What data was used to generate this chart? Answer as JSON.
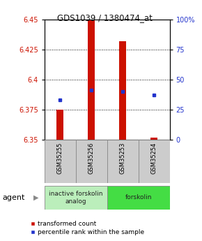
{
  "title": "GDS1039 / 1380474_at",
  "samples": [
    "GSM35255",
    "GSM35256",
    "GSM35253",
    "GSM35254"
  ],
  "bar_bottoms": [
    6.35,
    6.35,
    6.35,
    6.35
  ],
  "bar_tops": [
    6.375,
    6.45,
    6.432,
    6.352
  ],
  "blue_pct": [
    33,
    41,
    40,
    37
  ],
  "ylim": [
    6.35,
    6.45
  ],
  "yticks_left": [
    6.35,
    6.375,
    6.4,
    6.425,
    6.45
  ],
  "yticks_right_vals": [
    0,
    25,
    50,
    75,
    100
  ],
  "yticks_right_labels": [
    "0",
    "25",
    "50",
    "75",
    "100%"
  ],
  "bar_color": "#cc1100",
  "blue_color": "#2233cc",
  "groups": [
    {
      "label": "inactive forskolin\nanalog",
      "start": 0,
      "end": 1,
      "color": "#bbeebb"
    },
    {
      "label": "forskolin",
      "start": 2,
      "end": 3,
      "color": "#44dd44"
    }
  ],
  "agent_label": "agent",
  "legend_red_label": "transformed count",
  "legend_blue_label": "percentile rank within the sample",
  "left_tick_color": "#cc1100",
  "right_tick_color": "#2233cc",
  "title_color": "#111111",
  "sample_box_color": "#cccccc",
  "sample_box_edge": "#888888"
}
